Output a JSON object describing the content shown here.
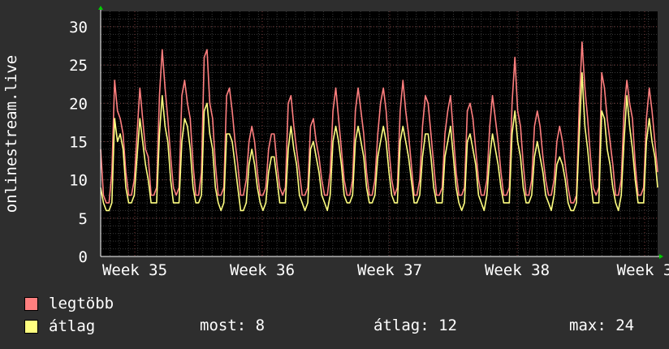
{
  "chart_data": {
    "type": "line",
    "title": "",
    "ylabel": "onlinestream.live",
    "ylim": [
      0,
      32
    ],
    "yticks": [
      0,
      5,
      10,
      15,
      20,
      25,
      30
    ],
    "xticks": [
      "Week 35",
      "Week 36",
      "Week 37",
      "Week 38",
      "Week 3"
    ],
    "series": [
      {
        "name": "legtöbb",
        "color": "#ff7f7f",
        "values": [
          14,
          8,
          7,
          7,
          11,
          23,
          19,
          18,
          16,
          11,
          8,
          8,
          10,
          16,
          22,
          18,
          14,
          13,
          8,
          8,
          9,
          21,
          27,
          22,
          18,
          13,
          9,
          8,
          9,
          21,
          23,
          20,
          18,
          12,
          8,
          8,
          11,
          26,
          27,
          20,
          18,
          12,
          8,
          8,
          9,
          21,
          22,
          19,
          15,
          12,
          8,
          8,
          10,
          15,
          17,
          15,
          11,
          8,
          8,
          9,
          14,
          16,
          16,
          12,
          9,
          8,
          9,
          20,
          21,
          17,
          14,
          11,
          8,
          8,
          9,
          17,
          18,
          15,
          13,
          10,
          8,
          8,
          11,
          19,
          22,
          18,
          14,
          10,
          8,
          8,
          10,
          19,
          22,
          19,
          16,
          11,
          8,
          8,
          10,
          16,
          20,
          22,
          19,
          14,
          10,
          8,
          9,
          19,
          23,
          19,
          16,
          12,
          8,
          8,
          10,
          17,
          21,
          20,
          16,
          12,
          8,
          8,
          9,
          16,
          19,
          21,
          16,
          11,
          8,
          8,
          9,
          19,
          20,
          18,
          14,
          10,
          8,
          8,
          10,
          17,
          21,
          18,
          15,
          11,
          8,
          8,
          9,
          20,
          26,
          19,
          17,
          12,
          8,
          8,
          10,
          17,
          19,
          17,
          13,
          10,
          8,
          8,
          10,
          15,
          17,
          15,
          12,
          9,
          7,
          7,
          8,
          20,
          28,
          22,
          18,
          13,
          9,
          8,
          9,
          24,
          22,
          18,
          15,
          12,
          8,
          8,
          10,
          19,
          23,
          20,
          18,
          12,
          8,
          8,
          9,
          18,
          22,
          19,
          15,
          11
        ],
        "max": 28
      },
      {
        "name": "átlag",
        "color": "#ffff80",
        "values": [
          9,
          7,
          6,
          6,
          7,
          18,
          15,
          16,
          14,
          9,
          7,
          7,
          8,
          13,
          18,
          15,
          12,
          10,
          7,
          7,
          7,
          16,
          21,
          17,
          15,
          10,
          7,
          7,
          7,
          15,
          18,
          17,
          14,
          9,
          7,
          7,
          8,
          19,
          20,
          16,
          14,
          9,
          7,
          6,
          7,
          16,
          16,
          15,
          12,
          9,
          6,
          6,
          7,
          12,
          14,
          12,
          9,
          7,
          6,
          7,
          11,
          13,
          13,
          10,
          7,
          7,
          7,
          14,
          17,
          14,
          12,
          8,
          7,
          6,
          7,
          14,
          15,
          13,
          11,
          8,
          7,
          6,
          8,
          15,
          17,
          15,
          12,
          8,
          7,
          7,
          8,
          15,
          17,
          15,
          13,
          9,
          7,
          7,
          8,
          13,
          15,
          17,
          15,
          11,
          8,
          7,
          7,
          15,
          17,
          15,
          13,
          10,
          7,
          7,
          8,
          13,
          16,
          16,
          13,
          9,
          7,
          7,
          7,
          13,
          15,
          17,
          13,
          9,
          7,
          6,
          7,
          15,
          16,
          14,
          12,
          8,
          7,
          6,
          8,
          13,
          16,
          14,
          12,
          9,
          7,
          7,
          7,
          16,
          19,
          15,
          13,
          9,
          7,
          7,
          8,
          13,
          15,
          13,
          11,
          8,
          7,
          6,
          8,
          12,
          13,
          12,
          10,
          7,
          6,
          6,
          7,
          16,
          24,
          17,
          14,
          10,
          7,
          7,
          7,
          19,
          18,
          14,
          12,
          9,
          7,
          6,
          8,
          15,
          21,
          17,
          14,
          10,
          7,
          7,
          7,
          15,
          18,
          15,
          13,
          9
        ],
        "max": 24
      }
    ],
    "legend_position": "bottom-left",
    "grid": true
  },
  "legend": {
    "items": [
      {
        "label": "legtöbb",
        "color": "#ff7f7f"
      },
      {
        "label": "átlag",
        "color": "#ffff80"
      }
    ]
  },
  "stats": {
    "most": "most: 8",
    "atlag": "átlag: 12",
    "max": "max: 24"
  }
}
